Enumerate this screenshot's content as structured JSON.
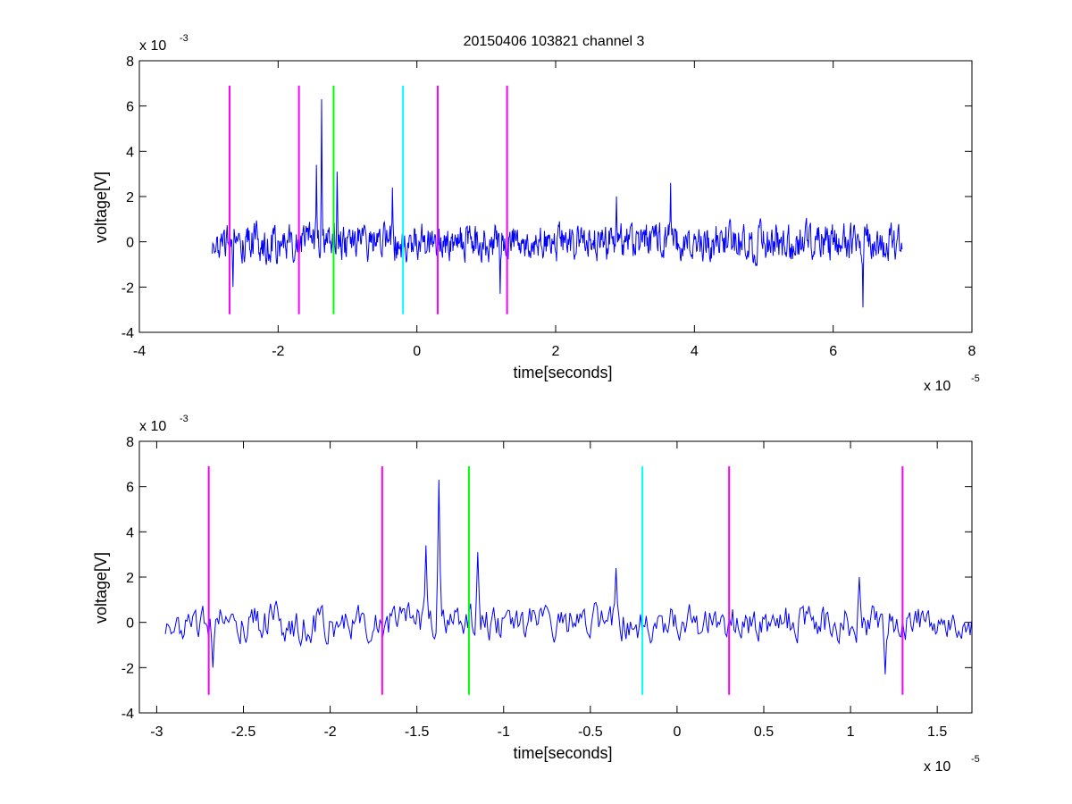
{
  "title": "20150406 103821 channel 3",
  "colors": {
    "signal": "#0000ff",
    "marker_magenta": "#ff00ff",
    "marker_green": "#00ff00",
    "marker_cyan": "#00ffff",
    "axes": "#000000",
    "background": "#ffffff"
  },
  "chart_data": [
    {
      "type": "line",
      "title": "20150406 103821 channel 3",
      "xlabel": "time[seconds]",
      "ylabel": "voltage[V]",
      "x_exponent_label": "x 10",
      "x_exponent": "-5",
      "y_exponent_label": "x 10",
      "y_exponent": "-3",
      "xlim": [
        -4,
        8
      ],
      "ylim": [
        -4,
        8
      ],
      "x_ticks": [
        -4,
        -2,
        0,
        2,
        4,
        6,
        8
      ],
      "x_tick_labels": [
        "-4",
        "-2",
        "0",
        "2",
        "4",
        "6",
        "8"
      ],
      "y_ticks": [
        -4,
        -2,
        0,
        2,
        4,
        6,
        8
      ],
      "y_tick_labels": [
        "-4",
        "-2",
        "0",
        "2",
        "4",
        "6",
        "8"
      ],
      "grid": false,
      "series": [
        {
          "x_range": [
            -2.95,
            7.0
          ],
          "noise_amplitude": 0.75,
          "spikes": [
            {
              "x": -1.37,
              "y": 6.3
            },
            {
              "x": -1.45,
              "y": 3.4
            },
            {
              "x": -1.15,
              "y": 3.1
            },
            {
              "x": 3.66,
              "y": 2.6
            },
            {
              "x": 2.88,
              "y": 2.0
            },
            {
              "x": -0.35,
              "y": 2.4
            },
            {
              "x": 6.43,
              "y": -2.9
            },
            {
              "x": -2.65,
              "y": -2.0
            },
            {
              "x": 1.2,
              "y": -2.3
            }
          ]
        }
      ],
      "markers": [
        {
          "x": -2.7,
          "color": "magenta"
        },
        {
          "x": -1.7,
          "color": "magenta"
        },
        {
          "x": -1.2,
          "color": "green"
        },
        {
          "x": -0.2,
          "color": "cyan"
        },
        {
          "x": 0.3,
          "color": "magenta"
        },
        {
          "x": 1.3,
          "color": "magenta"
        }
      ],
      "marker_y_range": [
        -3.2,
        6.9
      ]
    },
    {
      "type": "line",
      "xlabel": "time[seconds]",
      "ylabel": "voltage[V]",
      "x_exponent_label": "x 10",
      "x_exponent": "-5",
      "y_exponent_label": "x 10",
      "y_exponent": "-3",
      "xlim": [
        -3.1,
        1.7
      ],
      "ylim": [
        -4,
        8
      ],
      "x_ticks": [
        -3,
        -2.5,
        -2,
        -1.5,
        -1,
        -0.5,
        0,
        0.5,
        1,
        1.5
      ],
      "x_tick_labels": [
        "-3",
        "-2.5",
        "-2",
        "-1.5",
        "-1",
        "-0.5",
        "0",
        "0.5",
        "1",
        "1.5"
      ],
      "y_ticks": [
        -4,
        -2,
        0,
        2,
        4,
        6,
        8
      ],
      "y_tick_labels": [
        "-4",
        "-2",
        "0",
        "2",
        "4",
        "6",
        "8"
      ],
      "grid": false,
      "series": [
        {
          "x_range": [
            -2.95,
            1.7
          ],
          "noise_amplitude": 0.75,
          "spikes": [
            {
              "x": -1.37,
              "y": 6.3
            },
            {
              "x": -1.45,
              "y": 3.4
            },
            {
              "x": -1.15,
              "y": 3.1
            },
            {
              "x": -0.35,
              "y": 2.4
            },
            {
              "x": -2.68,
              "y": -2.0
            },
            {
              "x": 1.2,
              "y": -2.3
            },
            {
              "x": 1.05,
              "y": 2.0
            }
          ]
        }
      ],
      "markers": [
        {
          "x": -2.7,
          "color": "magenta"
        },
        {
          "x": -1.7,
          "color": "magenta"
        },
        {
          "x": -1.2,
          "color": "green"
        },
        {
          "x": -0.2,
          "color": "cyan"
        },
        {
          "x": 0.3,
          "color": "magenta"
        },
        {
          "x": 1.3,
          "color": "magenta"
        }
      ],
      "marker_y_range": [
        -3.2,
        6.9
      ]
    }
  ]
}
